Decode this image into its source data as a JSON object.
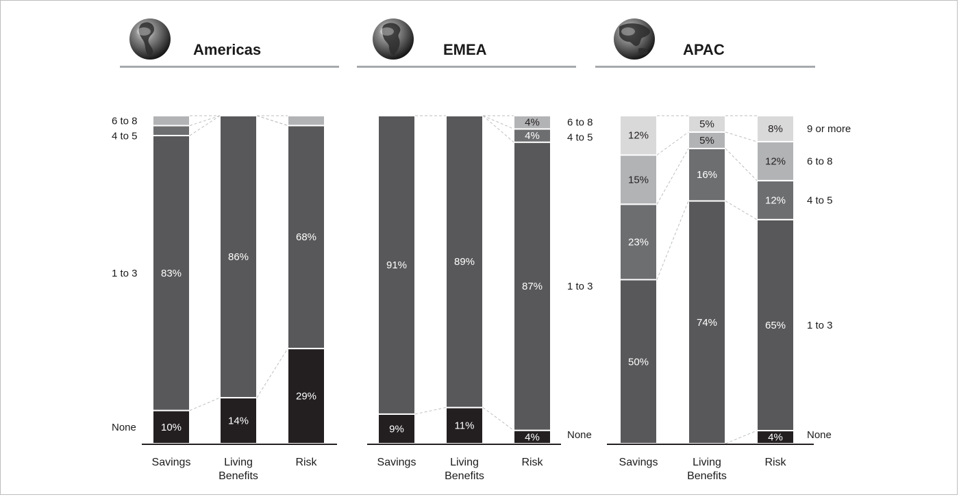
{
  "colors": {
    "None": "#231f20",
    "1 to 3": "#58585a",
    "4 to 5": "#6d6e70",
    "6 to 8": "#b2b3b5",
    "9 or more": "#d9d9da",
    "header_rule": "#a7a9ac",
    "connector": "#bcbec0",
    "axis": "#231f20",
    "label_light": "#ffffff",
    "label_dark": "#231f20"
  },
  "chart_data": [
    {
      "type": "bar",
      "stacked": true,
      "title": "Americas",
      "globe_icon": "globe-americas-icon",
      "categories": [
        "Savings",
        "Living\nBenefits",
        "Risk"
      ],
      "series": [
        {
          "name": "None",
          "values": [
            10,
            14,
            29
          ],
          "labels": [
            "10%",
            "14%",
            "29%"
          ]
        },
        {
          "name": "1 to 3",
          "values": [
            83,
            86,
            68
          ],
          "labels": [
            "83%",
            "86%",
            "68%"
          ]
        },
        {
          "name": "4 to 5",
          "values": [
            3,
            0,
            0
          ],
          "labels": [
            "",
            "",
            ""
          ]
        },
        {
          "name": "6 to 8",
          "values": [
            3,
            0,
            3
          ],
          "labels": [
            "",
            "",
            ""
          ]
        }
      ],
      "legend": [
        "None",
        "1 to 3",
        "4 to 5",
        "6 to 8"
      ]
    },
    {
      "type": "bar",
      "stacked": true,
      "title": "EMEA",
      "globe_icon": "globe-emea-icon",
      "categories": [
        "Savings",
        "Living\nBenefits",
        "Risk"
      ],
      "series": [
        {
          "name": "None",
          "values": [
            9,
            11,
            4
          ],
          "labels": [
            "9%",
            "11%",
            "4%"
          ]
        },
        {
          "name": "1 to 3",
          "values": [
            91,
            89,
            87
          ],
          "labels": [
            "91%",
            "89%",
            "87%"
          ]
        },
        {
          "name": "4 to 5",
          "values": [
            0,
            0,
            4
          ],
          "labels": [
            "",
            "",
            "4%"
          ]
        },
        {
          "name": "6 to 8",
          "values": [
            0,
            0,
            4
          ],
          "labels": [
            "",
            "",
            "4%"
          ]
        }
      ],
      "legend": [
        "None",
        "1 to 3",
        "4 to 5",
        "6 to 8"
      ]
    },
    {
      "type": "bar",
      "stacked": true,
      "title": "APAC",
      "globe_icon": "globe-apac-icon",
      "categories": [
        "Savings",
        "Living\nBenefits",
        "Risk"
      ],
      "series": [
        {
          "name": "None",
          "values": [
            0,
            0,
            4
          ],
          "labels": [
            "",
            "",
            "4%"
          ]
        },
        {
          "name": "1 to 3",
          "values": [
            50,
            74,
            65
          ],
          "labels": [
            "50%",
            "74%",
            "65%"
          ]
        },
        {
          "name": "4 to 5",
          "values": [
            23,
            16,
            12
          ],
          "labels": [
            "23%",
            "16%",
            "12%"
          ]
        },
        {
          "name": "6 to 8",
          "values": [
            15,
            5,
            12
          ],
          "labels": [
            "15%",
            "5%",
            "12%"
          ]
        },
        {
          "name": "9 or more",
          "values": [
            12,
            5,
            8
          ],
          "labels": [
            "12%",
            "5%",
            "8%"
          ]
        }
      ],
      "legend": [
        "None",
        "1 to 3",
        "4 to 5",
        "6 to 8",
        "9 or more"
      ]
    }
  ]
}
